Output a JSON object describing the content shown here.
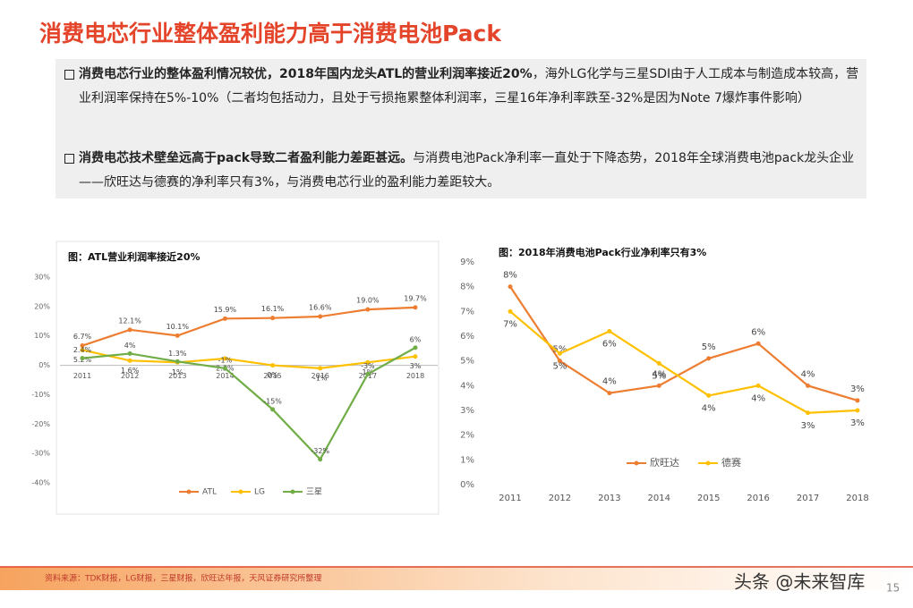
{
  "header": {
    "title": "消费电芯行业整体盈利能力高于消费电池Pack"
  },
  "bullets": [
    {
      "bold": "消费电芯行业的整体盈利情况较优，2018年国内龙头ATL的营业利润率接近20%",
      "text": "，海外LG化学与三星SDI由于人工成本与制造成本较高，营业利润率保持在5%-10%（二者均包括动力，且处于亏损拖累整体利润率，三星16年净利率跌至-32%是因为Note 7爆炸事件影响）"
    },
    {
      "bold": "消费电芯技术壁垒远高于pack导致二者盈利能力差距甚远。",
      "text": "与消费电池Pack净利率一直处于下降态势，2018年全球消费电池pack龙头企业——欣旺达与德赛的净利率只有3%，与消费电芯行业的盈利能力差距较大。"
    }
  ],
  "chart_data": [
    {
      "type": "line",
      "title": "图：ATL营业利润率接近20%",
      "categories": [
        "2011",
        "2012",
        "2013",
        "2014",
        "2015",
        "2016",
        "2017",
        "2018"
      ],
      "series": [
        {
          "name": "ATL",
          "color": "#ed7d31",
          "values": [
            6.7,
            12.1,
            10.1,
            15.9,
            16.1,
            16.6,
            19.0,
            19.7
          ],
          "value_labels": [
            "6.7%",
            "12.1%",
            "10.1%",
            "15.9%",
            "16.1%",
            "16.6%",
            "19.0%",
            "19.7%"
          ]
        },
        {
          "name": "LG",
          "color": "#ffc000",
          "values": [
            5.2,
            1.6,
            1,
            2.3,
            0,
            -1,
            1,
            3
          ],
          "value_labels": [
            "5.2%",
            "1.6%",
            "1%",
            "2.3%",
            "0%",
            "-1%",
            "1%",
            "3%"
          ]
        },
        {
          "name": "三星",
          "color": "#70ad47",
          "values": [
            2.4,
            4,
            1.3,
            -1,
            -15,
            -32,
            -3,
            6
          ],
          "value_labels": [
            "2.4%",
            "4%",
            "1.3%",
            "-1%",
            "-15%",
            "-32%",
            "-3%",
            "6%"
          ]
        }
      ],
      "ylim": [
        -40,
        30
      ],
      "yticks": [
        {
          "value": -40,
          "label": "-40%"
        },
        {
          "value": -30,
          "label": "-30%"
        },
        {
          "value": -20,
          "label": "-20%"
        },
        {
          "value": -10,
          "label": "-10%"
        },
        {
          "value": 0,
          "label": "0%"
        },
        {
          "value": 10,
          "label": "10%"
        },
        {
          "value": 20,
          "label": "20%"
        },
        {
          "value": 30,
          "label": "30%"
        }
      ],
      "grid": false,
      "legend": "bottom"
    },
    {
      "type": "line",
      "title": "图：2018年消费电池Pack行业净利率只有3%",
      "categories": [
        "2011",
        "2012",
        "2013",
        "2014",
        "2015",
        "2016",
        "2017",
        "2018"
      ],
      "series": [
        {
          "name": "欣旺达",
          "color": "#ed7d31",
          "values": [
            8.0,
            5.0,
            3.7,
            4.0,
            5.1,
            5.7,
            4.0,
            3.4
          ],
          "value_labels": [
            "8%",
            "5%",
            "4%",
            "4%",
            "5%",
            "6%",
            "4%",
            "3%"
          ]
        },
        {
          "name": "德赛",
          "color": "#ffc000",
          "values": [
            7.0,
            5.3,
            6.2,
            4.9,
            3.6,
            4.0,
            2.9,
            3.0
          ],
          "value_labels": [
            "7%",
            "5%",
            "6%",
            "5%",
            "4%",
            "4%",
            "3%",
            "3%"
          ]
        }
      ],
      "ylim": [
        0,
        9
      ],
      "yticks": [
        {
          "value": 0,
          "label": "0%"
        },
        {
          "value": 1,
          "label": "1%"
        },
        {
          "value": 2,
          "label": "2%"
        },
        {
          "value": 3,
          "label": "3%"
        },
        {
          "value": 4,
          "label": "4%"
        },
        {
          "value": 5,
          "label": "5%"
        },
        {
          "value": 6,
          "label": "6%"
        },
        {
          "value": 7,
          "label": "7%"
        },
        {
          "value": 8,
          "label": "8%"
        },
        {
          "value": 9,
          "label": "9%"
        }
      ],
      "grid": false,
      "legend": "bottom"
    }
  ],
  "footer": {
    "source": "资料来源：TDK财报，LG财报，三星财报，欣旺达年报，天风证券研究所整理",
    "watermark": "头条 @未来智库",
    "page": "15"
  }
}
